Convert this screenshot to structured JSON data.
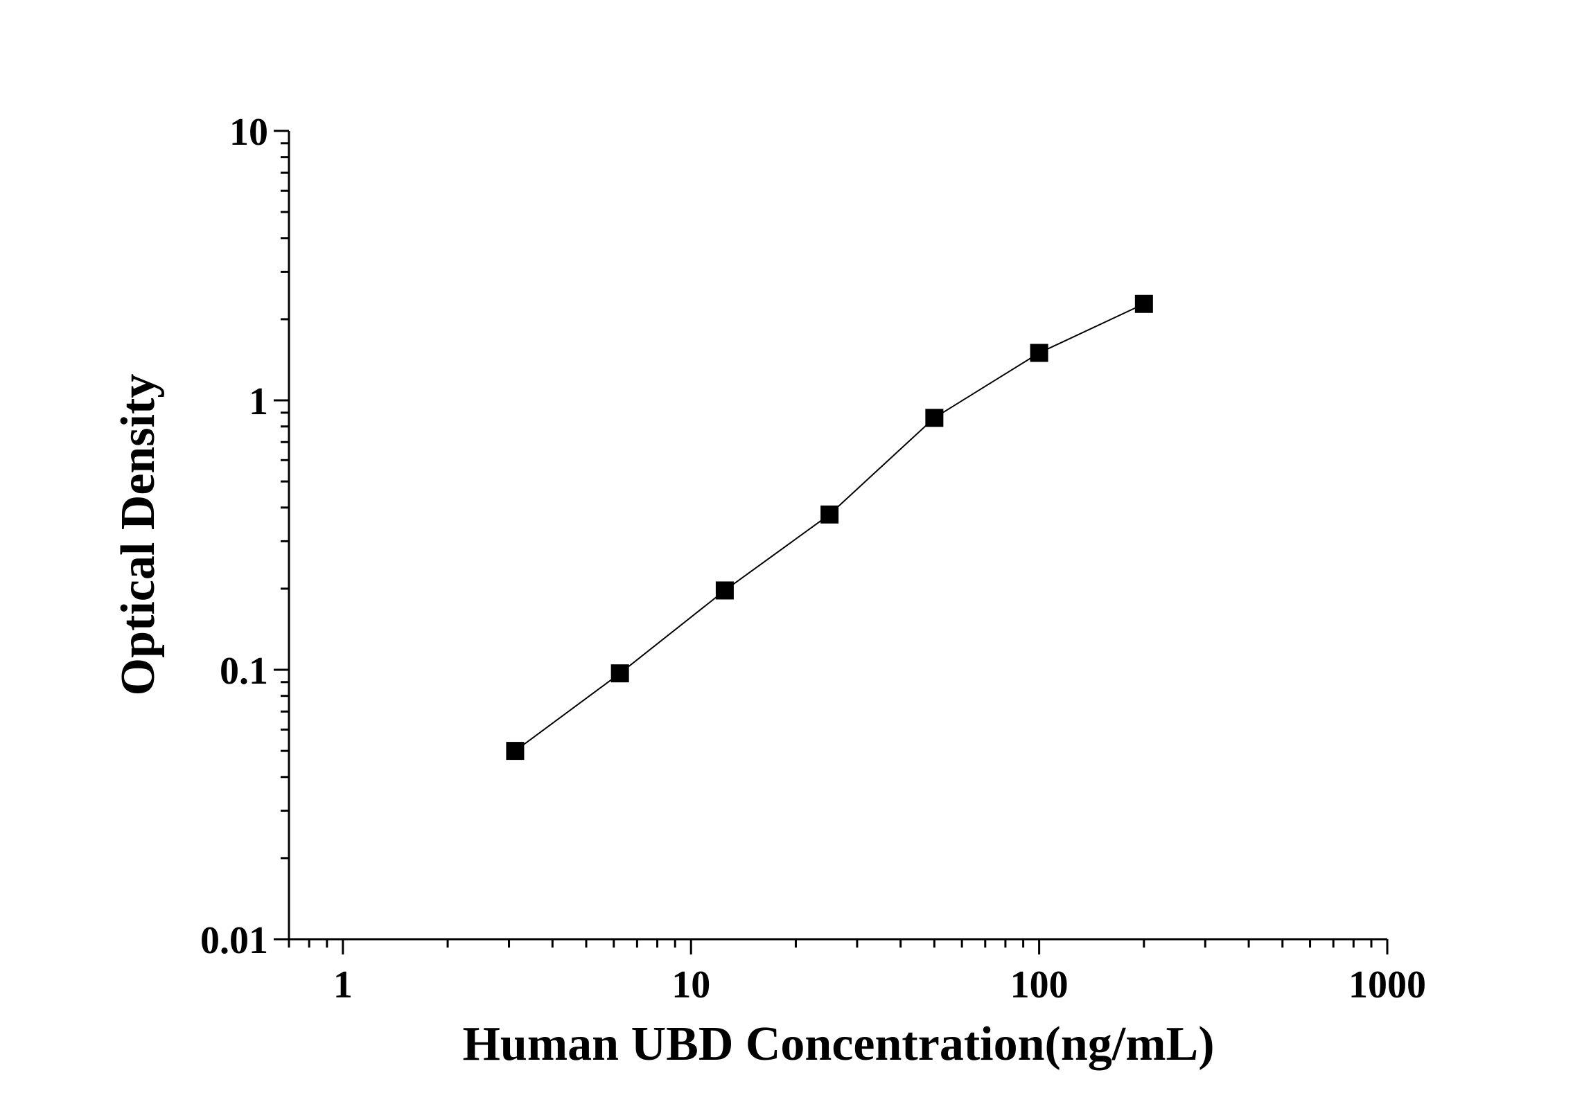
{
  "chart_data": {
    "type": "line",
    "x_label": "Human UBD Concentration(ng/mL)",
    "y_label": "Optical Density",
    "x": [
      3.125,
      6.25,
      12.5,
      25,
      50,
      100,
      200
    ],
    "series": [
      {
        "color": "#000000",
        "values": [
          0.05,
          0.097,
          0.197,
          0.377,
          0.861,
          1.5,
          2.28
        ]
      }
    ],
    "xlim": [
      0.7,
      1000
    ],
    "ylim": [
      0.01,
      10
    ],
    "xticks": [
      1,
      10,
      100,
      1000
    ],
    "yticks": [
      0.01,
      0.1,
      1,
      10
    ],
    "xscale": "log",
    "yscale": "log",
    "grid": false
  }
}
